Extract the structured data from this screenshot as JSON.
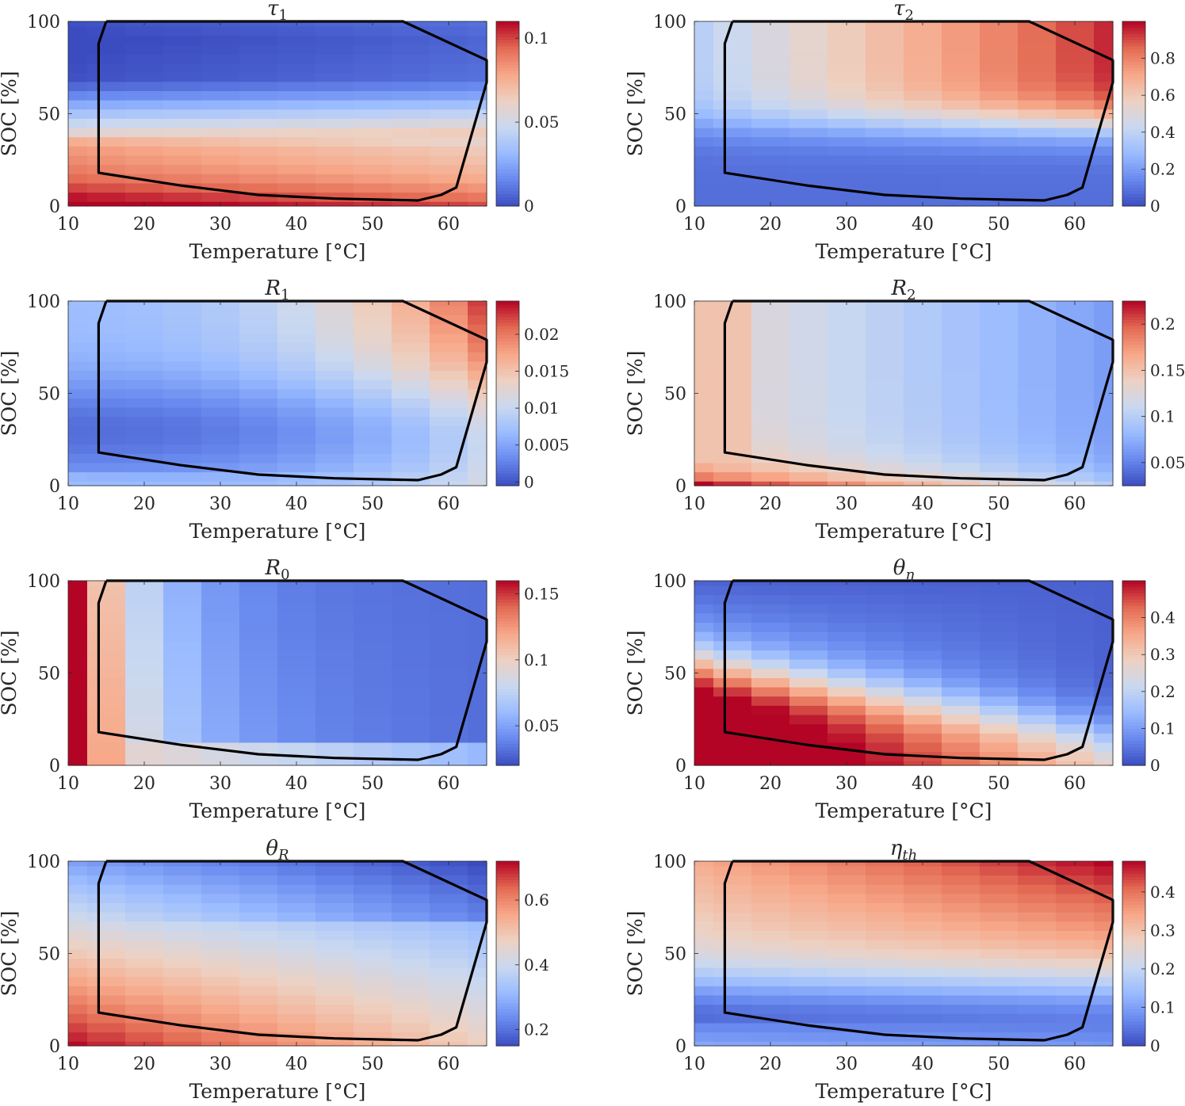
{
  "figure": {
    "background": "#ffffff"
  },
  "colormap": {
    "name": "coolwarm",
    "stops": [
      "#3b4cc0",
      "#6889ee",
      "#9abbff",
      "#c9d8f0",
      "#edd1c2",
      "#f7a889",
      "#e36a53",
      "#b40426"
    ]
  },
  "common_axes": {
    "xlabel": "Temperature [°C]",
    "ylabel": "SOC [%]",
    "xticks": [
      10,
      20,
      30,
      40,
      50,
      60
    ],
    "yticks": [
      0,
      50,
      100
    ],
    "xlim": [
      10,
      65
    ],
    "ylim": [
      0,
      100
    ]
  },
  "grid_axes": {
    "temperatures": [
      10,
      15,
      20,
      25,
      30,
      35,
      40,
      45,
      50,
      55,
      60,
      65
    ],
    "soc_levels": [
      0,
      5,
      10,
      15,
      20,
      25,
      30,
      35,
      40,
      45,
      50,
      55,
      60,
      65,
      70,
      75,
      80,
      85,
      90,
      95,
      100
    ]
  },
  "boundary": {
    "color": "#000000",
    "points": [
      [
        15,
        100
      ],
      [
        54,
        100
      ],
      [
        65,
        79
      ],
      [
        65,
        67
      ],
      [
        61,
        10
      ],
      [
        59,
        6
      ],
      [
        56,
        3
      ],
      [
        45,
        4
      ],
      [
        35,
        6
      ],
      [
        25,
        11
      ],
      [
        14,
        18
      ],
      [
        14,
        88
      ],
      [
        15,
        100
      ]
    ]
  },
  "chart_data": [
    {
      "type": "heatmap",
      "title": "τ",
      "title_sub": "1",
      "colorbar": {
        "min": 0,
        "max": 0.11,
        "ticks": [
          0,
          0.05,
          0.1
        ],
        "tick_labels": [
          "0",
          "0.05",
          "0.1"
        ]
      },
      "model": {
        "kind": "bands",
        "bands": [
          [
            0,
            0.108
          ],
          [
            6,
            0.098
          ],
          [
            14,
            0.087
          ],
          [
            22,
            0.08
          ],
          [
            30,
            0.075
          ],
          [
            38,
            0.065
          ],
          [
            44,
            0.052
          ],
          [
            50,
            0.04
          ],
          [
            56,
            0.028
          ],
          [
            62,
            0.015
          ],
          [
            70,
            0.005
          ],
          [
            90,
            0.002
          ],
          [
            100,
            0.005
          ]
        ],
        "tcoef": -0.0003,
        "tref": 35
      }
    },
    {
      "type": "heatmap",
      "title": "τ",
      "title_sub": "2",
      "colorbar": {
        "min": 0,
        "max": 1.0,
        "ticks": [
          0,
          0.2,
          0.4,
          0.6,
          0.8
        ],
        "tick_labels": [
          "0",
          "0.2",
          "0.4",
          "0.6",
          "0.8"
        ]
      },
      "model": {
        "kind": "soc_temp",
        "lo": 0.08,
        "hi": 0.95,
        "soc_mid": 45,
        "soc_width": 25,
        "t_lo": 0.35,
        "t_hi": 1.0
      }
    },
    {
      "type": "heatmap",
      "title": "R",
      "title_sub": "1",
      "colorbar": {
        "min": -0.0005,
        "max": 0.0245,
        "ticks": [
          0,
          0.005,
          0.01,
          0.015,
          0.02
        ],
        "tick_labels": [
          "0",
          "0.005",
          "0.01",
          "0.015",
          "0.02"
        ]
      },
      "model": {
        "kind": "r1"
      }
    },
    {
      "type": "heatmap",
      "title": "R",
      "title_sub": "2",
      "colorbar": {
        "min": 0.025,
        "max": 0.225,
        "ticks": [
          0.05,
          0.1,
          0.15,
          0.2
        ],
        "tick_labels": [
          "0.05",
          "0.1",
          "0.15",
          "0.2"
        ]
      },
      "model": {
        "kind": "r2"
      }
    },
    {
      "type": "heatmap",
      "title": "R",
      "title_sub": "0",
      "colorbar": {
        "min": 0.02,
        "max": 0.16,
        "ticks": [
          0.05,
          0.1,
          0.15
        ],
        "tick_labels": [
          "0.05",
          "0.1",
          "0.15"
        ]
      },
      "model": {
        "kind": "r0"
      }
    },
    {
      "type": "heatmap",
      "title": "θ",
      "title_sub": "η",
      "colorbar": {
        "min": 0,
        "max": 0.5,
        "ticks": [
          0,
          0.1,
          0.2,
          0.3,
          0.4
        ],
        "tick_labels": [
          "0",
          "0.1",
          "0.2",
          "0.3",
          "0.4"
        ]
      },
      "model": {
        "kind": "theta_eta"
      }
    },
    {
      "type": "heatmap",
      "title": "θ",
      "title_sub": "R",
      "colorbar": {
        "min": 0.15,
        "max": 0.72,
        "ticks": [
          0.2,
          0.4,
          0.6
        ],
        "tick_labels": [
          "0.2",
          "0.4",
          "0.6"
        ]
      },
      "model": {
        "kind": "theta_r"
      }
    },
    {
      "type": "heatmap",
      "title": "η",
      "title_sub": "th",
      "colorbar": {
        "min": 0,
        "max": 0.48,
        "ticks": [
          0,
          0.1,
          0.2,
          0.3,
          0.4
        ],
        "tick_labels": [
          "0",
          "0.1",
          "0.2",
          "0.3",
          "0.4"
        ]
      },
      "model": {
        "kind": "eta_th"
      }
    }
  ]
}
